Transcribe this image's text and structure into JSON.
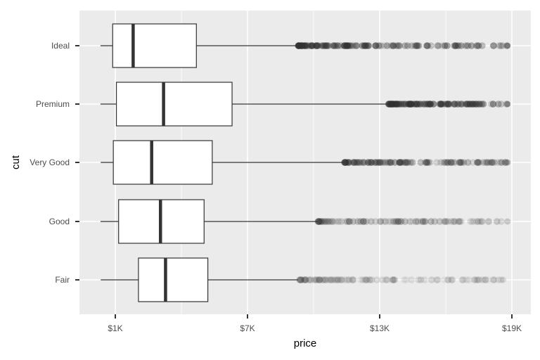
{
  "chart_data": {
    "type": "boxplot",
    "orientation": "horizontal",
    "xlabel": "price",
    "ylabel": "cut",
    "xlim": [
      -500,
      19900
    ],
    "x_ticks": [
      {
        "value": 1000,
        "label": "$1K"
      },
      {
        "value": 7000,
        "label": "$7K"
      },
      {
        "value": 13000,
        "label": "$13K"
      },
      {
        "value": 19000,
        "label": "$19K"
      }
    ],
    "x_minor_gridlines": [
      4000,
      10000,
      16000
    ],
    "grid": true,
    "panel_background": "#ebebeb",
    "box_color": "#333333",
    "outlier_color": "#333333",
    "categories": [
      "Ideal",
      "Premium",
      "Very Good",
      "Good",
      "Fair"
    ],
    "boxes": [
      {
        "category": "Ideal",
        "min": 326,
        "q1": 880,
        "median": 1810,
        "q3": 4680,
        "whisker_high": 9300,
        "outliers_start": 9300,
        "outliers_end": 18800,
        "outlier_opacity": 0.85
      },
      {
        "category": "Premium",
        "min": 326,
        "q1": 1050,
        "median": 3190,
        "q3": 6300,
        "whisker_high": 13400,
        "outliers_start": 13400,
        "outliers_end": 18800,
        "outlier_opacity": 0.8
      },
      {
        "category": "Very Good",
        "min": 336,
        "q1": 910,
        "median": 2650,
        "q3": 5400,
        "whisker_high": 11400,
        "outliers_start": 11400,
        "outliers_end": 18800,
        "outlier_opacity": 0.6
      },
      {
        "category": "Good",
        "min": 327,
        "q1": 1150,
        "median": 3050,
        "q3": 5030,
        "whisker_high": 10200,
        "outliers_start": 10200,
        "outliers_end": 18800,
        "outlier_opacity": 0.35
      },
      {
        "category": "Fair",
        "min": 337,
        "q1": 2050,
        "median": 3280,
        "q3": 5200,
        "whisker_high": 9300,
        "outliers_start": 9300,
        "outliers_end": 18600,
        "outlier_opacity": 0.25
      }
    ]
  }
}
